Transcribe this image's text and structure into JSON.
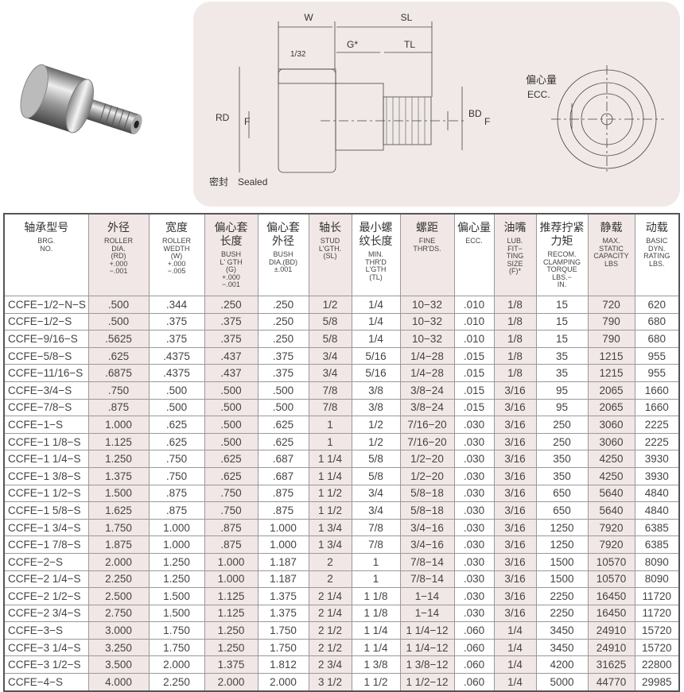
{
  "diagram": {
    "labels": {
      "w": "W",
      "sl": "SL",
      "g": "G*",
      "tl": "TL",
      "gap": "1/32",
      "rd": "RD",
      "f": "F",
      "bd": "BD",
      "ecc_zh": "偏心量",
      "ecc_en": "ECC.",
      "sealed_zh": "密封",
      "sealed_en": "Sealed"
    }
  },
  "table": {
    "headers": [
      {
        "zh": "轴承型号",
        "en": "BRG.\nNO."
      },
      {
        "zh": "外径",
        "en": "ROLLER\nDIA.\n(RD)\n+.000\n−.001"
      },
      {
        "zh": "宽度",
        "en": "ROLLER\nWEDTH\n(W)\n+.000\n−.005"
      },
      {
        "zh": "偏心套\n长度",
        "en": "BUSH\nL' GTH\n(G)\n+.000\n−.001"
      },
      {
        "zh": "偏心套\n外径",
        "en": "BUSH\nDIA.(BD)\n±.001"
      },
      {
        "zh": "轴长",
        "en": "STUD\nL'GTH.\n(SL)"
      },
      {
        "zh": "最小螺\n纹长度",
        "en": "MIN.\nTHR'D\nL'GTH\n(TL)"
      },
      {
        "zh": "螺距",
        "en": "FINE\nTHR'DS."
      },
      {
        "zh": "偏心量",
        "en": "ECC."
      },
      {
        "zh": "油嘴",
        "en": "LUB.\nFIT−\nTING\nSIZE\n(F)*"
      },
      {
        "zh": "推荐拧紧\n力矩",
        "en": "RECOM.\nCLAMPING\nTORQUE\nLBS.−\nIN."
      },
      {
        "zh": "静载",
        "en": "MAX.\nSTATIC\nCAPACITY\nLBS"
      },
      {
        "zh": "动载",
        "en": "BASIC\nDYN.\nRATING\nLBS."
      }
    ],
    "rows": [
      [
        "CCFE−1/2−N−S",
        ".500",
        ".344",
        ".250",
        ".250",
        "1/2",
        "1/4",
        "10−32",
        ".010",
        "1/8",
        "15",
        "720",
        "620"
      ],
      [
        "CCFE−1/2−S",
        ".500",
        ".375",
        ".375",
        ".250",
        "5/8",
        "1/4",
        "10−32",
        ".010",
        "1/8",
        "15",
        "790",
        "680"
      ],
      [
        "CCFE−9/16−S",
        ".5625",
        ".375",
        ".375",
        ".250",
        "5/8",
        "1/4",
        "10−32",
        ".010",
        "1/8",
        "15",
        "790",
        "680"
      ],
      [
        "CCFE−5/8−S",
        ".625",
        ".4375",
        ".437",
        ".375",
        "3/4",
        "5/16",
        "1/4−28",
        ".015",
        "1/8",
        "35",
        "1215",
        "955"
      ],
      [
        "CCFE−11/16−S",
        ".6875",
        ".4375",
        ".437",
        ".375",
        "3/4",
        "5/16",
        "1/4−28",
        ".015",
        "1/8",
        "35",
        "1215",
        "955"
      ],
      [
        "CCFE−3/4−S",
        ".750",
        ".500",
        ".500",
        ".500",
        "7/8",
        "3/8",
        "3/8−24",
        ".015",
        "3/16",
        "95",
        "2065",
        "1660"
      ],
      [
        "CCFE−7/8−S",
        ".875",
        ".500",
        ".500",
        ".500",
        "7/8",
        "3/8",
        "3/8−24",
        ".015",
        "3/16",
        "95",
        "2065",
        "1660"
      ],
      [
        "CCFE−1−S",
        "1.000",
        ".625",
        ".500",
        ".625",
        "1",
        "1/2",
        "7/16−20",
        ".030",
        "3/16",
        "250",
        "3060",
        "2225"
      ],
      [
        "CCFE−1 1/8−S",
        "1.125",
        ".625",
        ".500",
        ".625",
        "1",
        "1/2",
        "7/16−20",
        ".030",
        "3/16",
        "250",
        "3060",
        "2225"
      ],
      [
        "CCFE−1 1/4−S",
        "1.250",
        ".750",
        ".625",
        ".687",
        "1 1/4",
        "5/8",
        "1/2−20",
        ".030",
        "3/16",
        "350",
        "4250",
        "3930"
      ],
      [
        "CCFE−1 3/8−S",
        "1.375",
        ".750",
        ".625",
        ".687",
        "1 1/4",
        "5/8",
        "1/2−20",
        ".030",
        "3/16",
        "350",
        "4250",
        "3930"
      ],
      [
        "CCFE−1 1/2−S",
        "1.500",
        ".875",
        ".750",
        ".875",
        "1 1/2",
        "3/4",
        "5/8−18",
        ".030",
        "3/16",
        "650",
        "5640",
        "4840"
      ],
      [
        "CCFE−1 5/8−S",
        "1.625",
        ".875",
        ".750",
        ".875",
        "1 1/2",
        "3/4",
        "5/8−18",
        ".030",
        "3/16",
        "650",
        "5640",
        "4840"
      ],
      [
        "CCFE−1 3/4−S",
        "1.750",
        "1.000",
        ".875",
        "1.000",
        "1 3/4",
        "7/8",
        "3/4−16",
        ".030",
        "3/16",
        "1250",
        "7920",
        "6385"
      ],
      [
        "CCFE−1 7/8−S",
        "1.875",
        "1.000",
        ".875",
        "1.000",
        "1 3/4",
        "7/8",
        "3/4−16",
        ".030",
        "3/16",
        "1250",
        "7920",
        "6385"
      ],
      [
        "CCFE−2−S",
        "2.000",
        "1.250",
        "1.000",
        "1.187",
        "2",
        "1",
        "7/8−14",
        ".030",
        "3/16",
        "1500",
        "10570",
        "8090"
      ],
      [
        "CCFE−2 1/4−S",
        "2.250",
        "1.250",
        "1.000",
        "1.187",
        "2",
        "1",
        "7/8−14",
        ".030",
        "3/16",
        "1500",
        "10570",
        "8090"
      ],
      [
        "CCFE−2 1/2−S",
        "2.500",
        "1.500",
        "1.125",
        "1.375",
        "2 1/4",
        "1 1/8",
        "1−14",
        ".030",
        "3/16",
        "2250",
        "16450",
        "11720"
      ],
      [
        "CCFE−2 3/4−S",
        "2.750",
        "1.500",
        "1.125",
        "1.375",
        "2 1/4",
        "1 1/8",
        "1−14",
        ".030",
        "3/16",
        "2250",
        "16450",
        "11720"
      ],
      [
        "CCFE−3−S",
        "3.000",
        "1.750",
        "1.250",
        "1.750",
        "2 1/2",
        "1 1/4",
        "1 1/4−12",
        ".060",
        "1/4",
        "3450",
        "24910",
        "15720"
      ],
      [
        "CCFE−3 1/4−S",
        "3.250",
        "1.750",
        "1.250",
        "1.750",
        "2 1/2",
        "1 1/4",
        "1 1/4−12",
        ".060",
        "1/4",
        "3450",
        "24910",
        "15720"
      ],
      [
        "CCFE−3 1/2−S",
        "3.500",
        "2.000",
        "1.375",
        "1.812",
        "2 3/4",
        "1 3/8",
        "1 3/8−12",
        ".060",
        "1/4",
        "4200",
        "31625",
        "22800"
      ],
      [
        "CCFE−4−S",
        "4.000",
        "2.250",
        "2.000",
        "2.000",
        "3 1/2",
        "1 1/2",
        "1 1/2−12",
        ".060",
        "1/4",
        "5000",
        "44770",
        "29985"
      ]
    ]
  },
  "colors": {
    "shaded_column": "#f1e7e6",
    "diagram_bg": "#f1e9e8"
  }
}
